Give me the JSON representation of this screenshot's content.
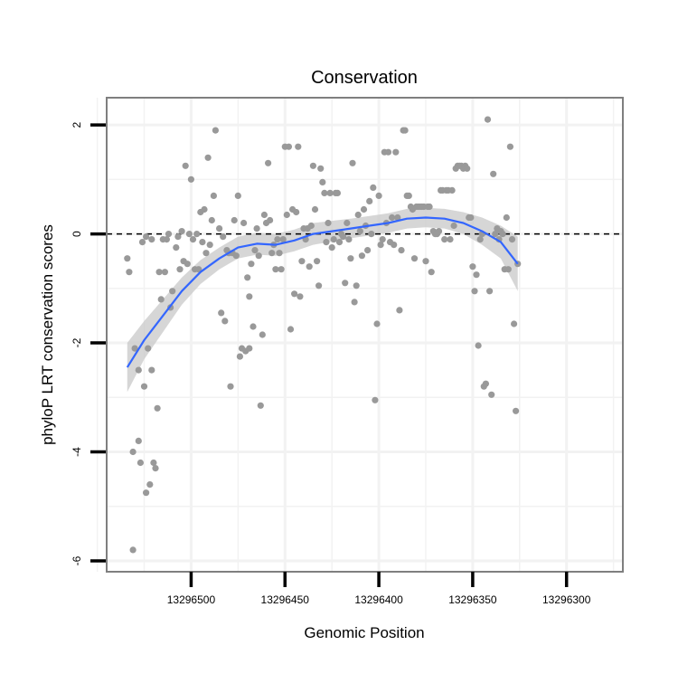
{
  "chart_data": {
    "type": "scatter",
    "title": "Conservation",
    "xlabel": "Genomic Position",
    "ylabel": "phyloP LRT conservation scores",
    "x_reversed": true,
    "xlim": [
      13296545,
      13296270
    ],
    "ylim": [
      -6.2,
      2.5
    ],
    "x_ticks": [
      13296500,
      13296450,
      13296400,
      13296350,
      13296300
    ],
    "x_tick_labels": [
      "13296500",
      "13296450",
      "13296400",
      "13296350",
      "13296300"
    ],
    "y_ticks": [
      2,
      0,
      -2,
      -4,
      -6
    ],
    "y_tick_labels": [
      "2",
      "0",
      "-2",
      "-4",
      "-6"
    ],
    "reference_line_y": 0,
    "colors": {
      "points": "#999999",
      "smooth": "#3366FF",
      "band": "#C8C8C8",
      "frame": "#7F7F7F",
      "grid": "#F2F2F2"
    },
    "series": [
      {
        "kind": "points",
        "values": [
          [
            13296534,
            -0.45
          ],
          [
            13296533,
            -0.7
          ],
          [
            13296531,
            -4.0
          ],
          [
            13296531,
            -5.8
          ],
          [
            13296530,
            -2.1
          ],
          [
            13296528,
            -3.8
          ],
          [
            13296528,
            -2.5
          ],
          [
            13296527,
            -4.2
          ],
          [
            13296526,
            -0.15
          ],
          [
            13296525,
            -2.8
          ],
          [
            13296524,
            -0.05
          ],
          [
            13296524,
            -4.75
          ],
          [
            13296523,
            -2.1
          ],
          [
            13296522,
            -4.6
          ],
          [
            13296521,
            -2.5
          ],
          [
            13296521,
            -0.1
          ],
          [
            13296520,
            -4.2
          ],
          [
            13296519,
            -4.3
          ],
          [
            13296518,
            -3.2
          ],
          [
            13296517,
            -0.7
          ],
          [
            13296516,
            -1.2
          ],
          [
            13296515,
            -0.1
          ],
          [
            13296514,
            -0.7
          ],
          [
            13296513,
            -0.1
          ],
          [
            13296512,
            0.0
          ],
          [
            13296511,
            -1.35
          ],
          [
            13296510,
            -1.05
          ],
          [
            13296508,
            -0.25
          ],
          [
            13296507,
            -0.05
          ],
          [
            13296506,
            -0.65
          ],
          [
            13296505,
            0.05
          ],
          [
            13296504,
            -0.5
          ],
          [
            13296503,
            1.25
          ],
          [
            13296502,
            -0.55
          ],
          [
            13296501,
            0.0
          ],
          [
            13296500,
            1.0
          ],
          [
            13296499,
            -0.1
          ],
          [
            13296498,
            -0.65
          ],
          [
            13296497,
            0.0
          ],
          [
            13296496,
            -0.65
          ],
          [
            13296495,
            0.4
          ],
          [
            13296494,
            -0.15
          ],
          [
            13296493,
            0.45
          ],
          [
            13296492,
            -0.35
          ],
          [
            13296491,
            1.4
          ],
          [
            13296490,
            -0.2
          ],
          [
            13296489,
            0.25
          ],
          [
            13296488,
            0.7
          ],
          [
            13296487,
            1.9
          ],
          [
            13296485,
            0.1
          ],
          [
            13296484,
            -1.45
          ],
          [
            13296483,
            -0.05
          ],
          [
            13296482,
            -1.6
          ],
          [
            13296481,
            -0.3
          ],
          [
            13296480,
            -0.35
          ],
          [
            13296479,
            -2.8
          ],
          [
            13296478,
            -0.35
          ],
          [
            13296477,
            0.25
          ],
          [
            13296476,
            -0.4
          ],
          [
            13296475,
            0.7
          ],
          [
            13296474,
            -2.25
          ],
          [
            13296473,
            -2.1
          ],
          [
            13296472,
            0.2
          ],
          [
            13296471,
            -2.15
          ],
          [
            13296470,
            -0.8
          ],
          [
            13296469,
            -2.1
          ],
          [
            13296469,
            -1.15
          ],
          [
            13296468,
            -0.55
          ],
          [
            13296467,
            -1.7
          ],
          [
            13296466,
            -0.3
          ],
          [
            13296465,
            0.1
          ],
          [
            13296464,
            -0.4
          ],
          [
            13296463,
            -3.15
          ],
          [
            13296462,
            -1.85
          ],
          [
            13296461,
            0.35
          ],
          [
            13296460,
            0.2
          ],
          [
            13296459,
            1.3
          ],
          [
            13296458,
            0.25
          ],
          [
            13296457,
            -0.35
          ],
          [
            13296456,
            -0.2
          ],
          [
            13296455,
            -0.65
          ],
          [
            13296454,
            -0.1
          ],
          [
            13296453,
            -0.35
          ],
          [
            13296452,
            -0.65
          ],
          [
            13296451,
            -0.1
          ],
          [
            13296450,
            1.6
          ],
          [
            13296449,
            0.35
          ],
          [
            13296448,
            1.6
          ],
          [
            13296447,
            -1.75
          ],
          [
            13296446,
            0.45
          ],
          [
            13296445,
            -1.1
          ],
          [
            13296444,
            0.4
          ],
          [
            13296443,
            1.6
          ],
          [
            13296442,
            -1.15
          ],
          [
            13296441,
            -0.5
          ],
          [
            13296440,
            0.1
          ],
          [
            13296439,
            -0.1
          ],
          [
            13296438,
            0.1
          ],
          [
            13296437,
            -0.6
          ],
          [
            13296436,
            0.15
          ],
          [
            13296435,
            1.25
          ],
          [
            13296434,
            0.45
          ],
          [
            13296433,
            -0.5
          ],
          [
            13296432,
            -0.95
          ],
          [
            13296431,
            1.2
          ],
          [
            13296430,
            0.95
          ],
          [
            13296429,
            0.75
          ],
          [
            13296428,
            -0.15
          ],
          [
            13296427,
            0.2
          ],
          [
            13296426,
            0.75
          ],
          [
            13296425,
            -0.25
          ],
          [
            13296424,
            -0.1
          ],
          [
            13296423,
            0.75
          ],
          [
            13296422,
            0.75
          ],
          [
            13296421,
            -0.15
          ],
          [
            13296420,
            0.0
          ],
          [
            13296419,
            -0.05
          ],
          [
            13296418,
            -0.9
          ],
          [
            13296417,
            0.2
          ],
          [
            13296416,
            -0.1
          ],
          [
            13296415,
            -0.45
          ],
          [
            13296414,
            1.3
          ],
          [
            13296413,
            -1.25
          ],
          [
            13296412,
            -0.95
          ],
          [
            13296411,
            0.35
          ],
          [
            13296410,
            0.05
          ],
          [
            13296409,
            -0.4
          ],
          [
            13296408,
            0.45
          ],
          [
            13296407,
            0.15
          ],
          [
            13296406,
            -0.3
          ],
          [
            13296405,
            0.6
          ],
          [
            13296404,
            0.0
          ],
          [
            13296403,
            0.85
          ],
          [
            13296402,
            -3.05
          ],
          [
            13296401,
            -1.65
          ],
          [
            13296400,
            0.7
          ],
          [
            13296399,
            -0.2
          ],
          [
            13296398,
            -0.1
          ],
          [
            13296397,
            1.5
          ],
          [
            13296396,
            0.2
          ],
          [
            13296395,
            1.5
          ],
          [
            13296394,
            -0.15
          ],
          [
            13296393,
            0.3
          ],
          [
            13296392,
            -0.2
          ],
          [
            13296391,
            1.5
          ],
          [
            13296390,
            0.3
          ],
          [
            13296389,
            -1.4
          ],
          [
            13296388,
            -0.3
          ],
          [
            13296387,
            1.9
          ],
          [
            13296386,
            1.9
          ],
          [
            13296385,
            0.7
          ],
          [
            13296384,
            0.7
          ],
          [
            13296383,
            0.5
          ],
          [
            13296382,
            0.45
          ],
          [
            13296381,
            -0.45
          ],
          [
            13296380,
            0.5
          ],
          [
            13296379,
            0.5
          ],
          [
            13296378,
            0.5
          ],
          [
            13296377,
            0.5
          ],
          [
            13296376,
            0.5
          ],
          [
            13296375,
            -0.5
          ],
          [
            13296374,
            0.5
          ],
          [
            13296373,
            0.5
          ],
          [
            13296372,
            -0.7
          ],
          [
            13296371,
            0.05
          ],
          [
            13296370,
            0.0
          ],
          [
            13296369,
            0.0
          ],
          [
            13296368,
            0.05
          ],
          [
            13296367,
            0.8
          ],
          [
            13296366,
            0.8
          ],
          [
            13296365,
            -0.1
          ],
          [
            13296364,
            0.8
          ],
          [
            13296363,
            0.8
          ],
          [
            13296362,
            -0.1
          ],
          [
            13296361,
            0.8
          ],
          [
            13296360,
            0.15
          ],
          [
            13296359,
            1.2
          ],
          [
            13296358,
            1.25
          ],
          [
            13296357,
            1.25
          ],
          [
            13296356,
            1.25
          ],
          [
            13296355,
            1.2
          ],
          [
            13296354,
            1.25
          ],
          [
            13296353,
            1.2
          ],
          [
            13296352,
            0.3
          ],
          [
            13296351,
            0.3
          ],
          [
            13296350,
            -0.6
          ],
          [
            13296349,
            -1.05
          ],
          [
            13296348,
            -0.75
          ],
          [
            13296347,
            -2.05
          ],
          [
            13296346,
            -0.1
          ],
          [
            13296345,
            0.0
          ],
          [
            13296344,
            -2.8
          ],
          [
            13296343,
            -2.75
          ],
          [
            13296342,
            2.1
          ],
          [
            13296341,
            -1.05
          ],
          [
            13296340,
            -2.95
          ],
          [
            13296339,
            1.1
          ],
          [
            13296338,
            0.0
          ],
          [
            13296337,
            0.1
          ],
          [
            13296336,
            -0.1
          ],
          [
            13296335,
            0.05
          ],
          [
            13296334,
            0.0
          ],
          [
            13296333,
            -0.65
          ],
          [
            13296332,
            0.3
          ],
          [
            13296331,
            -0.65
          ],
          [
            13296330,
            1.6
          ],
          [
            13296329,
            -0.1
          ],
          [
            13296328,
            -1.65
          ],
          [
            13296327,
            -3.25
          ],
          [
            13296326,
            -0.55
          ]
        ]
      },
      {
        "kind": "smooth",
        "x": [
          13296534,
          13296525,
          13296515,
          13296505,
          13296495,
          13296485,
          13296475,
          13296465,
          13296455,
          13296445,
          13296435,
          13296425,
          13296415,
          13296405,
          13296395,
          13296385,
          13296375,
          13296365,
          13296355,
          13296345,
          13296335,
          13296326
        ],
        "y": [
          -2.45,
          -1.95,
          -1.5,
          -1.05,
          -0.7,
          -0.45,
          -0.25,
          -0.18,
          -0.2,
          -0.12,
          0.0,
          0.05,
          0.1,
          0.15,
          0.2,
          0.28,
          0.3,
          0.28,
          0.2,
          0.05,
          -0.15,
          -0.55
        ],
        "lower": [
          -2.9,
          -2.3,
          -1.8,
          -1.3,
          -0.92,
          -0.65,
          -0.45,
          -0.38,
          -0.4,
          -0.32,
          -0.2,
          -0.14,
          -0.08,
          -0.03,
          0.02,
          0.1,
          0.12,
          0.1,
          0.0,
          -0.2,
          -0.45,
          -1.05
        ],
        "upper": [
          -2.0,
          -1.6,
          -1.2,
          -0.8,
          -0.48,
          -0.25,
          -0.05,
          0.02,
          0.0,
          0.08,
          0.2,
          0.24,
          0.28,
          0.33,
          0.38,
          0.46,
          0.48,
          0.46,
          0.4,
          0.3,
          0.15,
          -0.05
        ]
      }
    ]
  }
}
